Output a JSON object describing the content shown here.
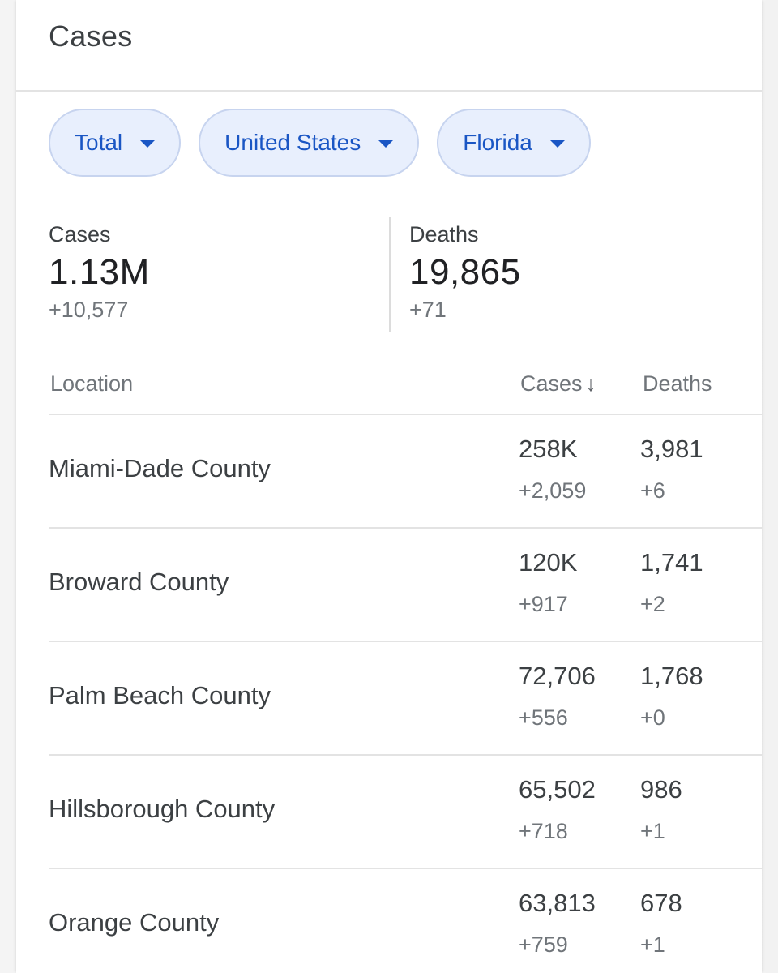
{
  "header": {
    "title": "Cases"
  },
  "filters": [
    {
      "label": "Total",
      "icon": "arrow-drop-down-icon"
    },
    {
      "label": "United States",
      "icon": "arrow-drop-down-icon"
    },
    {
      "label": "Florida",
      "icon": "arrow-drop-down-icon"
    }
  ],
  "summary": {
    "cases": {
      "label": "Cases",
      "value": "1.13M",
      "delta": "+10,577"
    },
    "deaths": {
      "label": "Deaths",
      "value": "19,865",
      "delta": "+71"
    }
  },
  "table": {
    "columns": {
      "location": "Location",
      "cases": "Cases",
      "cases_sort_icon": "↓",
      "deaths": "Deaths"
    },
    "rows": [
      {
        "location": "Miami-Dade County",
        "cases": "258K",
        "cases_delta": "+2,059",
        "deaths": "3,981",
        "deaths_delta": "+6"
      },
      {
        "location": "Broward County",
        "cases": "120K",
        "cases_delta": "+917",
        "deaths": "1,741",
        "deaths_delta": "+2"
      },
      {
        "location": "Palm Beach County",
        "cases": "72,706",
        "cases_delta": "+556",
        "deaths": "1,768",
        "deaths_delta": "+0"
      },
      {
        "location": "Hillsborough County",
        "cases": "65,502",
        "cases_delta": "+718",
        "deaths": "986",
        "deaths_delta": "+1"
      },
      {
        "location": "Orange County",
        "cases": "63,813",
        "cases_delta": "+759",
        "deaths": "678",
        "deaths_delta": "+1"
      }
    ]
  },
  "colors": {
    "chip_background": "#e8effd",
    "chip_border": "#c7d4ef",
    "chip_text": "#1a56c4",
    "primary_text": "#202124",
    "secondary_text": "#70757a",
    "divider": "#e3e3e3"
  }
}
